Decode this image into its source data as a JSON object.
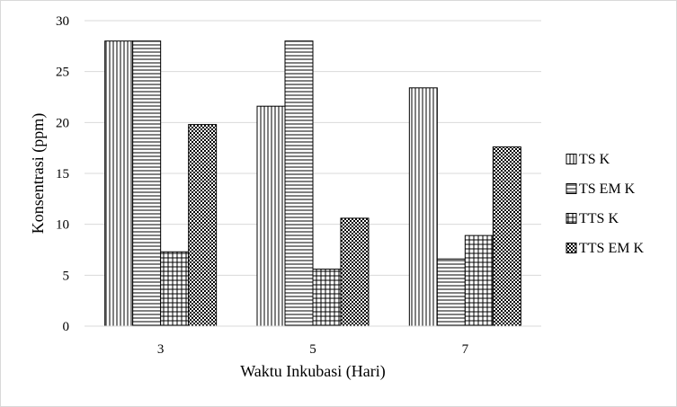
{
  "chart_data": {
    "type": "bar",
    "title": "",
    "xlabel": "Waktu Inkubasi (Hari)",
    "ylabel": "Konsentrasi (ppm)",
    "categories": [
      "3",
      "5",
      "7"
    ],
    "ylim": [
      0,
      30
    ],
    "yticks": [
      "0",
      "5",
      "10",
      "15",
      "20",
      "25",
      "30"
    ],
    "grid": true,
    "legend_position": "right",
    "series": [
      {
        "name": "TS K",
        "pattern": "vertical-lines",
        "values": [
          28,
          21.6,
          23.4
        ]
      },
      {
        "name": "TS EM K",
        "pattern": "horizontal-lines",
        "values": [
          28,
          28,
          6.6
        ]
      },
      {
        "name": "TTS K",
        "pattern": "grid",
        "values": [
          7.3,
          5.6,
          8.9
        ]
      },
      {
        "name": "TTS EM K",
        "pattern": "checkerboard",
        "values": [
          19.8,
          10.6,
          17.6
        ]
      }
    ]
  },
  "colors": {
    "bar_stroke": "#000000",
    "gridline": "#d9d9d9",
    "background": "#ffffff",
    "frame_border": "#d9d9d9"
  }
}
